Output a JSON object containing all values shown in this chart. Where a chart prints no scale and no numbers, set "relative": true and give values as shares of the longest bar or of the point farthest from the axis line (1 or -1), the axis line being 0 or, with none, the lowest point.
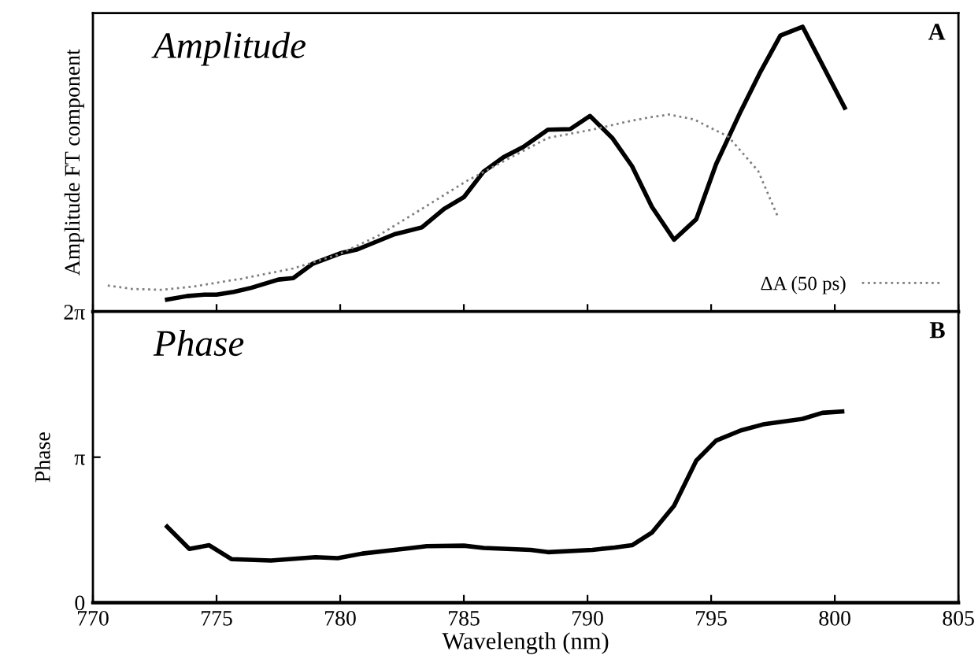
{
  "chart_data": [
    {
      "type": "line",
      "relative": true,
      "ylabel": "Amplitude FT component",
      "annotations": [
        "Amplitude",
        "A"
      ],
      "xlim": [
        770,
        805
      ],
      "xticks": [
        770,
        775,
        780,
        785,
        790,
        795,
        800,
        805
      ],
      "tick_labels": false,
      "legend": "bottom right",
      "grid": false,
      "series": [
        {
          "color": "#000000",
          "line_style": "solid",
          "x": [
            773.0,
            773.8,
            774.5,
            775.0,
            775.7,
            776.4,
            777.5,
            778.1,
            778.9,
            780.0,
            780.7,
            782.2,
            783.3,
            784.2,
            785.0,
            785.8,
            786.6,
            787.4,
            788.4,
            789.3,
            790.1,
            791.0,
            791.8,
            792.6,
            793.5,
            794.4,
            795.2,
            796.2,
            797.0,
            797.8,
            798.7,
            800.4
          ],
          "values": [
            0.043,
            0.055,
            0.06,
            0.06,
            0.07,
            0.084,
            0.113,
            0.118,
            0.169,
            0.205,
            0.219,
            0.272,
            0.296,
            0.361,
            0.402,
            0.492,
            0.542,
            0.578,
            0.639,
            0.641,
            0.687,
            0.61,
            0.511,
            0.369,
            0.253,
            0.325,
            0.518,
            0.704,
            0.843,
            0.969,
            1.0,
            0.716
          ]
        },
        {
          "name": "ΔA (50 ps)",
          "color": "#808080",
          "line_style": "dotted",
          "x": [
            770.6,
            771.6,
            772.8,
            774.1,
            776.0,
            778.1,
            779.9,
            781.5,
            783.3,
            785.1,
            786.8,
            788.4,
            790.2,
            791.6,
            792.5,
            793.3,
            794.3,
            795.7,
            796.9,
            797.7
          ],
          "values": [
            0.092,
            0.08,
            0.077,
            0.089,
            0.116,
            0.152,
            0.2,
            0.265,
            0.361,
            0.458,
            0.537,
            0.61,
            0.639,
            0.667,
            0.682,
            0.692,
            0.675,
            0.614,
            0.494,
            0.333
          ]
        }
      ]
    },
    {
      "type": "line",
      "xlabel": "Wavelength (nm)",
      "ylabel": "Phase",
      "annotations": [
        "Phase",
        "B"
      ],
      "xlim": [
        770,
        805
      ],
      "xticks": [
        770,
        775,
        780,
        785,
        790,
        795,
        800,
        805
      ],
      "ylim": [
        0,
        6.2832
      ],
      "yticks": [
        0,
        {
          "value": 3.1416,
          "label": "π"
        },
        {
          "value": 6.2832,
          "label": "2π"
        }
      ],
      "grid": false,
      "series": [
        {
          "color": "#000000",
          "line_style": "solid",
          "x": [
            773.0,
            773.9,
            774.7,
            775.6,
            777.2,
            779.0,
            779.9,
            780.9,
            782.9,
            783.5,
            785.0,
            785.8,
            787.7,
            788.4,
            790.2,
            791.1,
            791.8,
            792.6,
            793.5,
            794.4,
            795.2,
            796.2,
            797.1,
            798.7,
            799.5,
            800.3
          ],
          "values": [
            1.64,
            1.16,
            1.24,
            0.94,
            0.91,
            0.98,
            0.96,
            1.06,
            1.18,
            1.22,
            1.23,
            1.18,
            1.14,
            1.09,
            1.14,
            1.19,
            1.24,
            1.51,
            2.09,
            3.07,
            3.5,
            3.72,
            3.85,
            3.97,
            4.1,
            4.13
          ]
        }
      ]
    }
  ]
}
